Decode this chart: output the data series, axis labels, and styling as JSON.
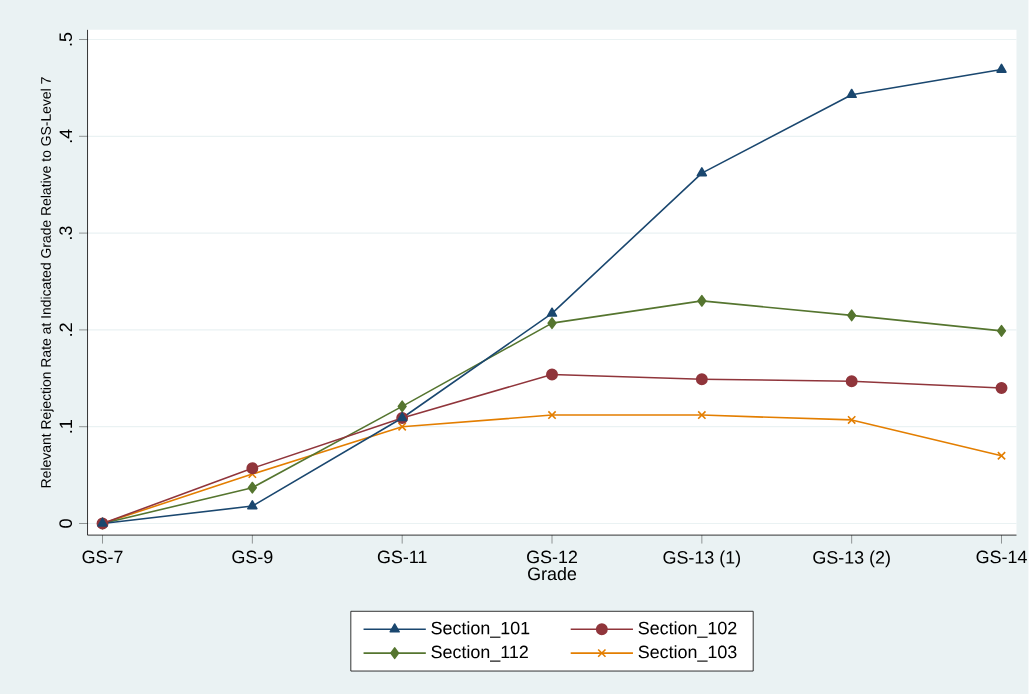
{
  "chart_data": {
    "type": "line",
    "xlabel": "Grade",
    "ylabel": "Relevant Rejection Rate at Indicated Grade Relative to GS-Level 7",
    "categories": [
      "GS-7",
      "GS-9",
      "GS-11",
      "GS-12",
      "GS-13 (1)",
      "GS-13 (2)",
      "GS-14"
    ],
    "series": [
      {
        "name": "Section_101",
        "color": "#1a476f",
        "marker": "triangle",
        "values": [
          0,
          0.018,
          0.109,
          0.217,
          0.362,
          0.443,
          0.469
        ]
      },
      {
        "name": "Section_102",
        "color": "#90353b",
        "marker": "circle",
        "values": [
          0,
          0.057,
          0.109,
          0.154,
          0.149,
          0.147,
          0.14
        ]
      },
      {
        "name": "Section_112",
        "color": "#55752f",
        "marker": "diamond",
        "values": [
          0,
          0.037,
          0.121,
          0.207,
          0.23,
          0.215,
          0.199
        ]
      },
      {
        "name": "Section_103",
        "color": "#e37e00",
        "marker": "cross",
        "values": [
          0,
          0.051,
          0.1,
          0.112,
          0.112,
          0.107,
          0.07
        ]
      }
    ],
    "ylim": [
      -0.012,
      0.51
    ],
    "yticks": [
      {
        "value": 0,
        "label": "0"
      },
      {
        "value": 0.1,
        "label": ".1"
      },
      {
        "value": 0.2,
        "label": ".2"
      },
      {
        "value": 0.3,
        "label": ".3"
      },
      {
        "value": 0.4,
        "label": ".4"
      },
      {
        "value": 0.5,
        "label": ".5"
      }
    ],
    "grid": "y",
    "legend": "bottom"
  }
}
